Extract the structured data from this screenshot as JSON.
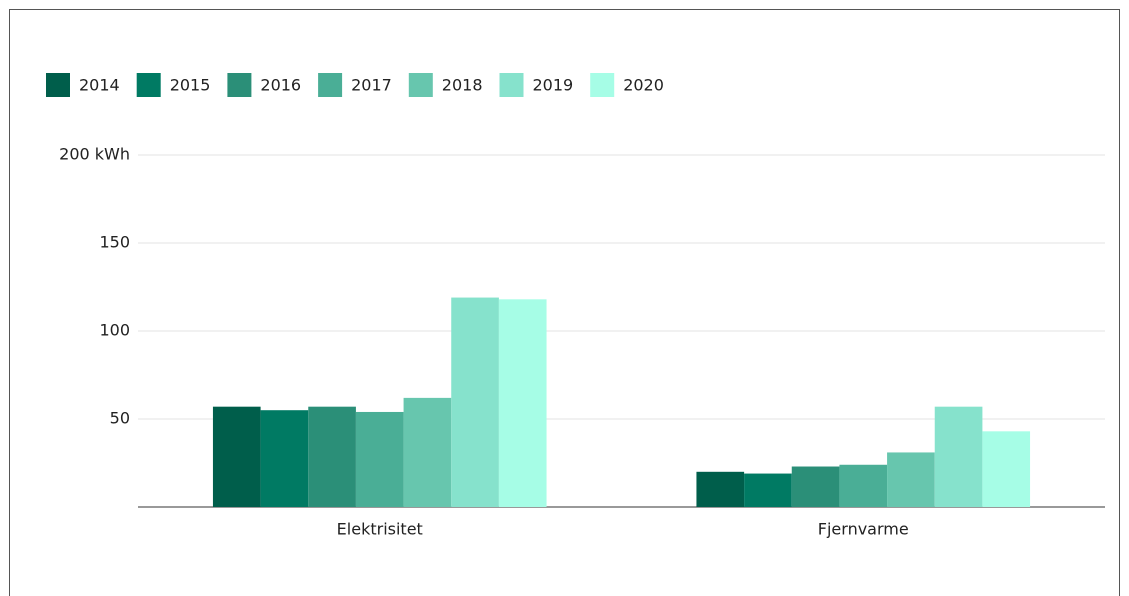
{
  "chart_data": {
    "type": "bar",
    "categories": [
      "Elektrisitet",
      "Fjernvarme"
    ],
    "series": [
      {
        "name": "2014",
        "color": "#005e4b",
        "values": [
          57,
          20
        ]
      },
      {
        "name": "2015",
        "color": "#007a63",
        "values": [
          55,
          19
        ]
      },
      {
        "name": "2016",
        "color": "#2b8f78",
        "values": [
          57,
          23
        ]
      },
      {
        "name": "2017",
        "color": "#4aae96",
        "values": [
          54,
          24
        ]
      },
      {
        "name": "2018",
        "color": "#67c6ae",
        "values": [
          62,
          31
        ]
      },
      {
        "name": "2019",
        "color": "#86e2cc",
        "values": [
          119,
          57
        ]
      },
      {
        "name": "2020",
        "color": "#a6fde6",
        "values": [
          118,
          43
        ]
      }
    ],
    "ylim": [
      0,
      200
    ],
    "yticks": [
      50,
      100,
      150,
      {
        "value": 200,
        "label": "200 kWh"
      }
    ],
    "grid": true,
    "legend": "top-left"
  }
}
